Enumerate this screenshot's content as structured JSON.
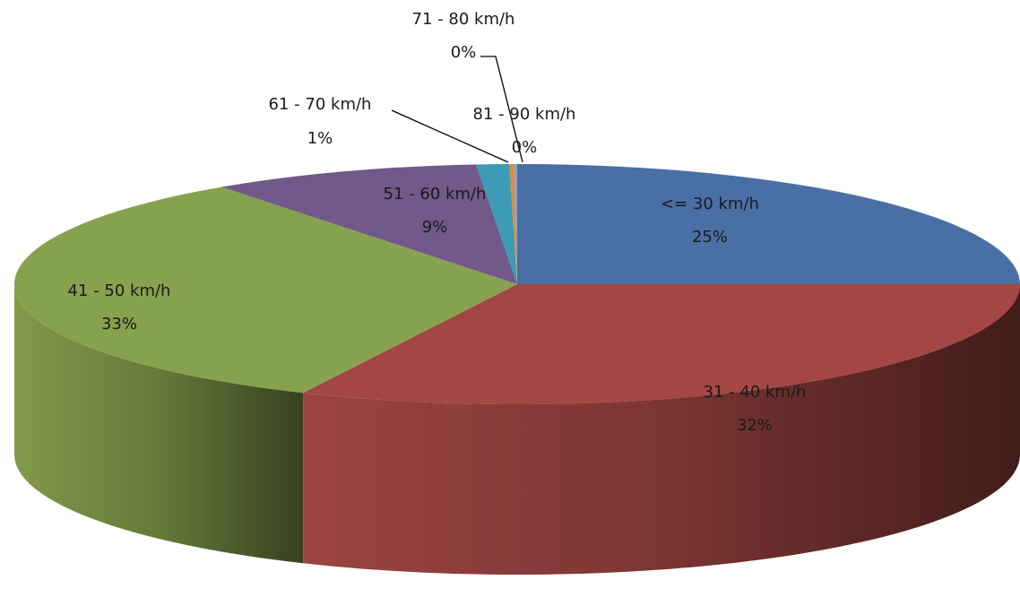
{
  "chart_data": {
    "type": "pie",
    "style": "3d",
    "legend": "none",
    "slices": [
      {
        "label": "<= 30  km/h",
        "pct_label": "25%",
        "value": 25.0,
        "color": "#4A6FA5"
      },
      {
        "label": "31 -  40  km/h",
        "pct_label": "32%",
        "value": 32.0,
        "color": "#A44744"
      },
      {
        "label": "41 -  50  km/h",
        "pct_label": "33%",
        "value": 33.0,
        "color": "#87A24E"
      },
      {
        "label": "51 -  60  km/h",
        "pct_label": "9%",
        "value": 8.7,
        "color": "#71598A"
      },
      {
        "label": "61 -  70  km/h",
        "pct_label": "1%",
        "value": 1.05,
        "color": "#3E9BB5"
      },
      {
        "label": "71 -  80  km/h",
        "pct_label": "0%",
        "value": 0.15,
        "color": "#E0893A"
      },
      {
        "label": "81 -  90  km/h",
        "pct_label": "0%",
        "value": 0.1,
        "color": "#8AA4C8"
      }
    ]
  }
}
